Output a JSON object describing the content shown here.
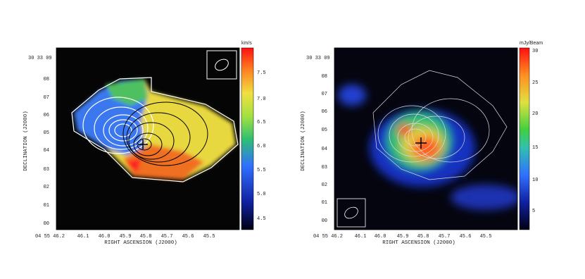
{
  "panels": [
    {
      "colorbar_unit": "km/s",
      "colorbar_ticks": [
        "7.5",
        "7.0",
        "6.5",
        "6.0",
        "5.5",
        "5.0",
        "4.5"
      ],
      "y_ticks": [
        "30 33 09",
        "08",
        "07",
        "06",
        "05",
        "04",
        "03",
        "02",
        "01",
        "00"
      ],
      "x_ticks": [
        "04 55 46.2",
        "46.1",
        "46.0",
        "45.9",
        "45.8",
        "45.7",
        "45.6",
        "45.5"
      ],
      "x_label": "RIGHT ASCENSION (J2000)",
      "y_label": "DECLINATION (J2000)"
    },
    {
      "colorbar_unit": "mJy/Beam",
      "colorbar_ticks": [
        "30",
        "25",
        "20",
        "15",
        "10",
        "5"
      ],
      "y_ticks": [
        "30 33 09",
        "08",
        "07",
        "06",
        "05",
        "04",
        "03",
        "02",
        "01",
        "00"
      ],
      "x_ticks": [
        "04 55 46.2",
        "46.1",
        "46.0",
        "45.9",
        "45.8",
        "45.7",
        "45.6",
        "45.5"
      ],
      "x_label": "RIGHT ASCENSION (J2000)",
      "y_label": "DECLINATION (J2000)"
    }
  ]
}
